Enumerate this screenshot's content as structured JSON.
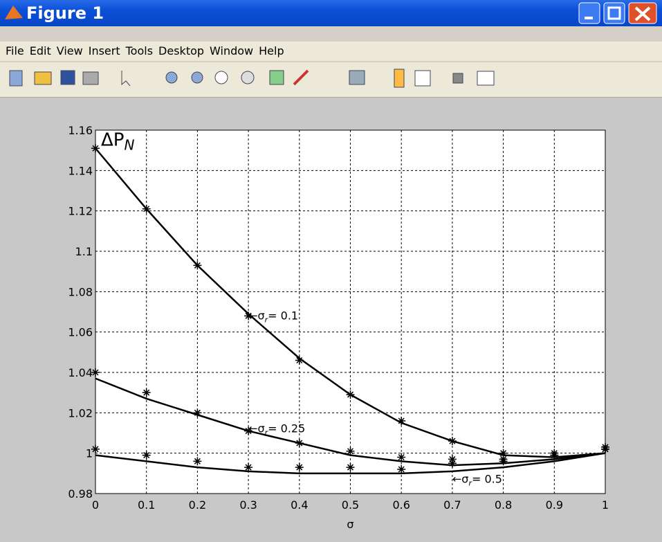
{
  "window": {
    "title": "Figure 1",
    "menu": [
      "File",
      "Edit",
      "View",
      "Insert",
      "Tools",
      "Desktop",
      "Window",
      "Help"
    ]
  },
  "chart_data": {
    "type": "line",
    "xlabel": "σ",
    "x": [
      0,
      0.1,
      0.2,
      0.3,
      0.4,
      0.5,
      0.6,
      0.7,
      0.8,
      0.9,
      1
    ],
    "xlim": [
      0,
      1
    ],
    "xticks": [
      0,
      0.1,
      0.2,
      0.3,
      0.4,
      0.5,
      0.6,
      0.7,
      0.8,
      0.9,
      1
    ],
    "ylim": [
      0.98,
      1.16
    ],
    "yticks": [
      0.98,
      1,
      1.02,
      1.04,
      1.06,
      1.08,
      1.1,
      1.12,
      1.14,
      1.16
    ],
    "grid": true,
    "series": [
      {
        "style": "line",
        "color": "#000000",
        "values": [
          1.151,
          1.121,
          1.093,
          1.069,
          1.047,
          1.029,
          1.015,
          1.006,
          0.999,
          0.998,
          1.0
        ]
      },
      {
        "style": "star",
        "color": "#000000",
        "values": [
          1.151,
          1.121,
          1.093,
          1.068,
          1.046,
          1.029,
          1.016,
          1.006,
          1.0,
          1.0,
          1.002
        ]
      },
      {
        "style": "line",
        "color": "#000000",
        "values": [
          1.037,
          1.027,
          1.019,
          1.011,
          1.005,
          0.999,
          0.996,
          0.994,
          0.995,
          0.997,
          1.0
        ]
      },
      {
        "style": "star",
        "color": "#000000",
        "values": [
          1.04,
          1.03,
          1.02,
          1.011,
          1.005,
          1.001,
          0.998,
          0.997,
          0.997,
          0.999,
          1.002
        ]
      },
      {
        "style": "line",
        "color": "#000000",
        "values": [
          0.999,
          0.996,
          0.993,
          0.991,
          0.99,
          0.99,
          0.99,
          0.991,
          0.993,
          0.996,
          1.0
        ]
      },
      {
        "style": "star",
        "color": "#000000",
        "values": [
          1.002,
          0.999,
          0.996,
          0.993,
          0.993,
          0.993,
          0.992,
          0.995,
          0.996,
          0.999,
          1.003
        ]
      }
    ],
    "annotations": [
      {
        "text": "ΔP",
        "sub": "N",
        "rest": "",
        "x": 0,
        "y": 1.155
      },
      {
        "text": "←σ",
        "sub": "r",
        "rest": "= 0.1",
        "x": 0.3,
        "y": 1.068
      },
      {
        "text": "←σ",
        "sub": "r",
        "rest": "= 0.25",
        "x": 0.3,
        "y": 1.012
      },
      {
        "text": "←σ",
        "sub": "r",
        "rest": "= 0.5",
        "x": 0.7,
        "y": 0.987
      }
    ]
  }
}
